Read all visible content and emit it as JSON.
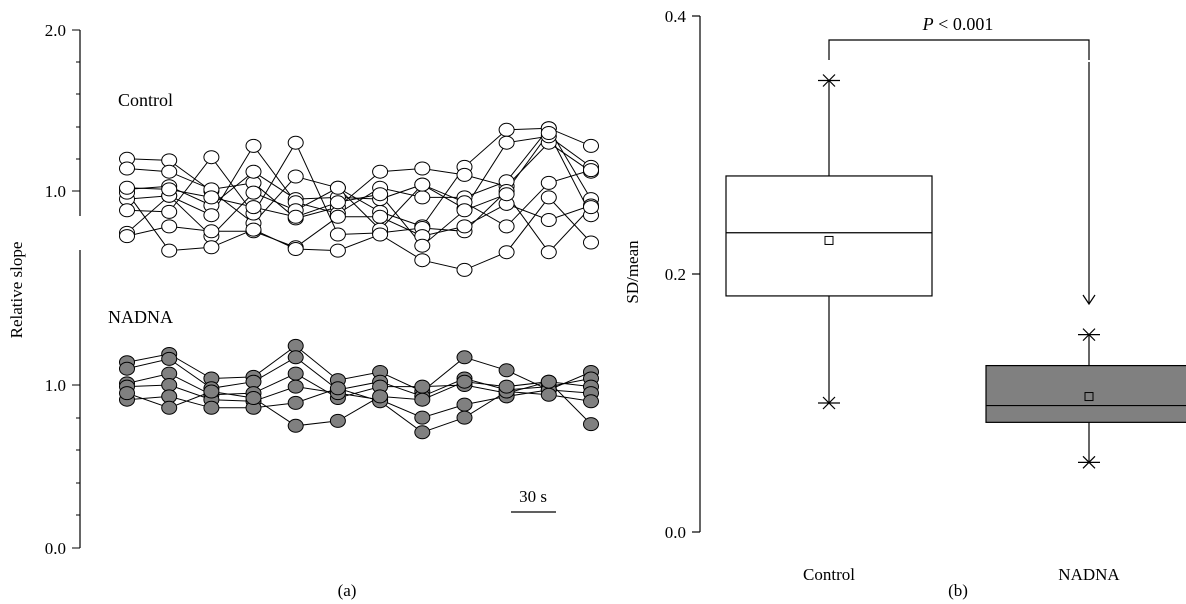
{
  "chart_data": [
    {
      "panel": "(a)",
      "type": "line",
      "ylabel": "Relative slope",
      "axis_ticks": [
        "2.0",
        "1.0",
        "1.0",
        "0.0"
      ],
      "scale_bar_label": "30 s",
      "point_count": 12,
      "groups": [
        {
          "label": "Control",
          "fill": "#ffffff",
          "series": [
            {
              "values": [
                1.2,
                1.19,
                1.0,
                0.8,
                1.09,
                1.02,
                0.87,
                0.78,
                1.15,
                1.38,
                1.39,
                1.28
              ]
            },
            {
              "values": [
                1.14,
                1.12,
                1.01,
                1.05,
                0.83,
                0.9,
                1.12,
                1.14,
                1.1,
                1.03,
                1.3,
                1.12
              ]
            },
            {
              "values": [
                1.01,
                1.03,
                0.91,
                1.12,
                0.95,
                0.96,
                0.95,
                1.04,
                0.89,
                1.3,
                1.34,
                1.15
              ]
            },
            {
              "values": [
                0.95,
                0.97,
                0.85,
                1.28,
                0.93,
                0.86,
                1.02,
                0.96,
                0.96,
                1.06,
                1.39,
                0.95
              ]
            },
            {
              "values": [
                0.88,
                0.87,
                1.21,
                0.86,
                1.3,
                0.73,
                0.74,
                0.77,
                0.75,
                1.0,
                1.36,
                0.85
              ]
            },
            {
              "values": [
                0.74,
                0.97,
                0.72,
                0.99,
                0.88,
                1.02,
                0.76,
                1.04,
                0.93,
                0.78,
                1.05,
                1.13
              ]
            },
            {
              "values": [
                0.72,
                0.78,
                0.75,
                0.75,
                0.65,
                0.84,
                0.84,
                0.72,
                0.78,
                0.92,
                0.82,
                0.91
              ]
            },
            {
              "values": [
                0.99,
                0.63,
                0.65,
                0.76,
                0.64,
                0.63,
                0.73,
                0.57,
                0.51,
                0.62,
                0.96,
                0.68
              ]
            },
            {
              "values": [
                1.02,
                1.01,
                0.96,
                0.9,
                0.84,
                0.93,
                0.98,
                0.66,
                0.88,
                0.98,
                0.62,
                0.9
              ]
            }
          ]
        },
        {
          "label": "NADNA",
          "fill": "#808080",
          "series": [
            {
              "values": [
                1.14,
                1.19,
                1.04,
                1.05,
                1.24,
                1.03,
                1.08,
                0.96,
                1.17,
                1.09,
                0.97,
                1.08
              ]
            },
            {
              "values": [
                1.1,
                1.16,
                0.98,
                1.02,
                1.17,
                0.97,
                1.02,
                0.93,
                1.04,
                0.97,
                0.99,
                1.04
              ]
            },
            {
              "values": [
                1.01,
                1.07,
                0.94,
                0.95,
                1.07,
                0.92,
                0.99,
                0.99,
                1.0,
                0.95,
                1.02,
                0.99
              ]
            },
            {
              "values": [
                0.99,
                1.0,
                0.91,
                0.9,
                0.99,
                0.95,
                0.91,
                0.8,
                0.88,
                0.93,
                0.97,
                0.95
              ]
            },
            {
              "values": [
                0.91,
                0.93,
                0.86,
                0.86,
                0.89,
                0.98,
                0.9,
                0.71,
                0.8,
                0.96,
                0.94,
                0.9
              ]
            },
            {
              "values": [
                0.95,
                0.86,
                0.96,
                0.92,
                0.75,
                0.78,
                0.93,
                0.91,
                1.02,
                0.99,
                1.02,
                0.76
              ]
            }
          ]
        }
      ]
    },
    {
      "panel": "(b)",
      "type": "box",
      "ylabel": "SD/mean",
      "categories": [
        "Control",
        "NADNA"
      ],
      "ylim": [
        0.0,
        0.4
      ],
      "yticks": [
        0.0,
        0.2,
        0.4
      ],
      "ytick_labels": [
        "0.0",
        "0.2",
        "0.4"
      ],
      "boxes": [
        {
          "category": "Control",
          "q1": 0.183,
          "median": 0.232,
          "q3": 0.276,
          "mean": 0.226,
          "whisker_low": 0.1,
          "whisker_high": 0.35,
          "fill": "#ffffff"
        },
        {
          "category": "NADNA",
          "q1": 0.085,
          "median": 0.098,
          "q3": 0.129,
          "mean": 0.105,
          "whisker_low": 0.054,
          "whisker_high": 0.153,
          "fill": "#808080"
        }
      ],
      "annotation": {
        "symbol": "P",
        "text": " < 0.001"
      }
    }
  ],
  "panel_labels": [
    "(a)",
    "(b)"
  ]
}
